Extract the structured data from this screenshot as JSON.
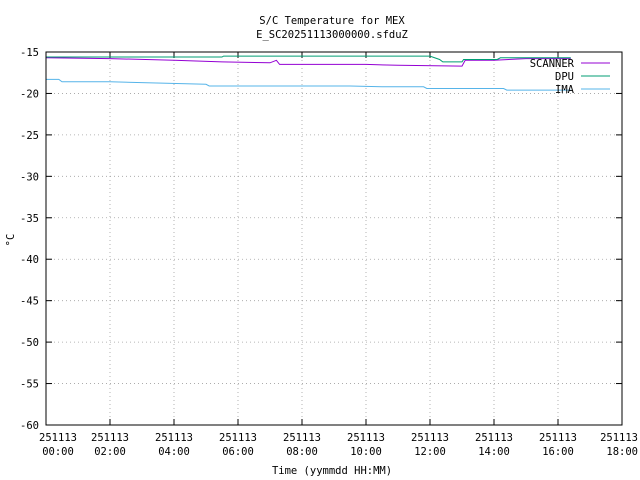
{
  "chart_data": {
    "type": "line",
    "title": "S/C Temperature for MEX",
    "subtitle": "E_SC20251113000000.sfduZ",
    "xlabel": "Time (yymmdd HH:MM)",
    "ylabel": "°C",
    "xlim": [
      0,
      18
    ],
    "ylim": [
      -60,
      -15
    ],
    "grid": true,
    "legend_position": "top-right",
    "x_ticks": [
      {
        "v": 0,
        "date": "251113",
        "time": "00:00"
      },
      {
        "v": 2,
        "date": "251113",
        "time": "02:00"
      },
      {
        "v": 4,
        "date": "251113",
        "time": "04:00"
      },
      {
        "v": 6,
        "date": "251113",
        "time": "06:00"
      },
      {
        "v": 8,
        "date": "251113",
        "time": "08:00"
      },
      {
        "v": 10,
        "date": "251113",
        "time": "10:00"
      },
      {
        "v": 12,
        "date": "251113",
        "time": "12:00"
      },
      {
        "v": 14,
        "date": "251113",
        "time": "14:00"
      },
      {
        "v": 16,
        "date": "251113",
        "time": "16:00"
      },
      {
        "v": 18,
        "date": "251113",
        "time": "18:00"
      }
    ],
    "y_ticks": [
      -15,
      -20,
      -25,
      -30,
      -35,
      -40,
      -45,
      -50,
      -55,
      -60
    ],
    "series": [
      {
        "name": "SCANNER",
        "color": "#9400d3",
        "points": [
          [
            0,
            -15.7
          ],
          [
            2,
            -15.8
          ],
          [
            4,
            -16.0
          ],
          [
            5.5,
            -16.2
          ],
          [
            7,
            -16.3
          ],
          [
            7.2,
            -16.0
          ],
          [
            7.3,
            -16.5
          ],
          [
            10,
            -16.5
          ],
          [
            11,
            -16.6
          ],
          [
            13,
            -16.7
          ],
          [
            13.1,
            -16.0
          ],
          [
            14,
            -16.0
          ],
          [
            15,
            -15.8
          ],
          [
            16.4,
            -15.8
          ]
        ]
      },
      {
        "name": "DPU",
        "color": "#009e73",
        "points": [
          [
            0,
            -15.6
          ],
          [
            3,
            -15.6
          ],
          [
            5.5,
            -15.6
          ],
          [
            5.55,
            -15.5
          ],
          [
            12,
            -15.5
          ],
          [
            12.3,
            -15.9
          ],
          [
            12.4,
            -16.2
          ],
          [
            13.0,
            -16.2
          ],
          [
            13.05,
            -15.9
          ],
          [
            14.1,
            -15.9
          ],
          [
            14.2,
            -15.7
          ],
          [
            15.8,
            -15.7
          ],
          [
            16.4,
            -15.7
          ]
        ]
      },
      {
        "name": "IMA",
        "color": "#56b4e9",
        "points": [
          [
            0,
            -18.3
          ],
          [
            0.4,
            -18.3
          ],
          [
            0.5,
            -18.6
          ],
          [
            2,
            -18.6
          ],
          [
            5.0,
            -18.9
          ],
          [
            5.1,
            -19.1
          ],
          [
            9.5,
            -19.1
          ],
          [
            10.5,
            -19.2
          ],
          [
            11.8,
            -19.2
          ],
          [
            11.9,
            -19.4
          ],
          [
            14.3,
            -19.4
          ],
          [
            14.4,
            -19.6
          ],
          [
            16.4,
            -19.6
          ]
        ]
      }
    ]
  }
}
